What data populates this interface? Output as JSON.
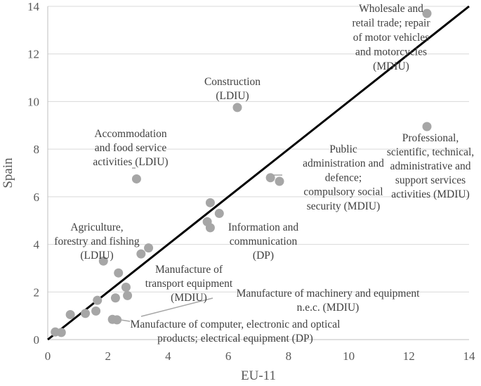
{
  "chart_data": {
    "type": "scatter",
    "xlabel": "EU-11",
    "ylabel": "Spain",
    "xlim": [
      0,
      14
    ],
    "ylim": [
      0,
      14
    ],
    "xticks": [
      "0",
      "2",
      "4",
      "6",
      "8",
      "10",
      "12",
      "14"
    ],
    "yticks": [
      "0",
      "2",
      "4",
      "6",
      "8",
      "10",
      "12",
      "14"
    ],
    "grid": "horizontal",
    "reference_line": "y = x",
    "colors": {
      "points": "#a6a6a6",
      "line": "#000000",
      "text": "#404040",
      "axis_text": "#595959",
      "grid": "#d9d9d9"
    },
    "points": [
      {
        "x": 12.6,
        "y": 13.7
      },
      {
        "x": 6.3,
        "y": 9.75
      },
      {
        "x": 12.6,
        "y": 8.95
      },
      {
        "x": 2.95,
        "y": 6.75
      },
      {
        "x": 7.4,
        "y": 6.8
      },
      {
        "x": 7.7,
        "y": 6.65
      },
      {
        "x": 5.4,
        "y": 5.75
      },
      {
        "x": 5.7,
        "y": 5.3
      },
      {
        "x": 5.3,
        "y": 4.95
      },
      {
        "x": 5.4,
        "y": 4.7
      },
      {
        "x": 3.35,
        "y": 3.85
      },
      {
        "x": 3.1,
        "y": 3.6
      },
      {
        "x": 1.85,
        "y": 3.3
      },
      {
        "x": 2.35,
        "y": 2.8
      },
      {
        "x": 2.6,
        "y": 2.2
      },
      {
        "x": 2.25,
        "y": 1.75
      },
      {
        "x": 2.65,
        "y": 1.85
      },
      {
        "x": 1.65,
        "y": 1.65
      },
      {
        "x": 1.6,
        "y": 1.2
      },
      {
        "x": 1.25,
        "y": 1.1
      },
      {
        "x": 0.75,
        "y": 1.05
      },
      {
        "x": 2.15,
        "y": 0.85
      },
      {
        "x": 2.3,
        "y": 0.83
      },
      {
        "x": 0.25,
        "y": 0.32
      },
      {
        "x": 0.45,
        "y": 0.3
      }
    ],
    "annotations": [
      {
        "lines": [
          "Wholesale and",
          "retail trade; repair",
          "of motor vehicles",
          "and motorcycles",
          "(MDIU)"
        ]
      },
      {
        "lines": [
          "Construction",
          "(LDIU)"
        ]
      },
      {
        "lines": [
          "Professional,",
          "scientific, technical,",
          "administrative and",
          "support services",
          "activities (MDIU)"
        ]
      },
      {
        "lines": [
          "Accommodation",
          "and food service",
          "activities (LDIU)"
        ]
      },
      {
        "lines": [
          "Public",
          "administration and",
          "defence;",
          "compulsory social",
          "security (MDIU)"
        ]
      },
      {
        "lines": [
          "Information and",
          "communication",
          "(DP)"
        ]
      },
      {
        "lines": [
          "Agriculture,",
          "forestry and fishing",
          "(LDIU)"
        ]
      },
      {
        "lines": [
          "Manufacture of",
          "transport equipment",
          "(MDIU)"
        ]
      },
      {
        "lines": [
          "Manufacture of machinery and equipment",
          "n.e.c. (MDIU)"
        ]
      },
      {
        "lines": [
          "Manufacture of computer, electronic and optical",
          "products; electrical equipment (DP)"
        ]
      }
    ]
  }
}
